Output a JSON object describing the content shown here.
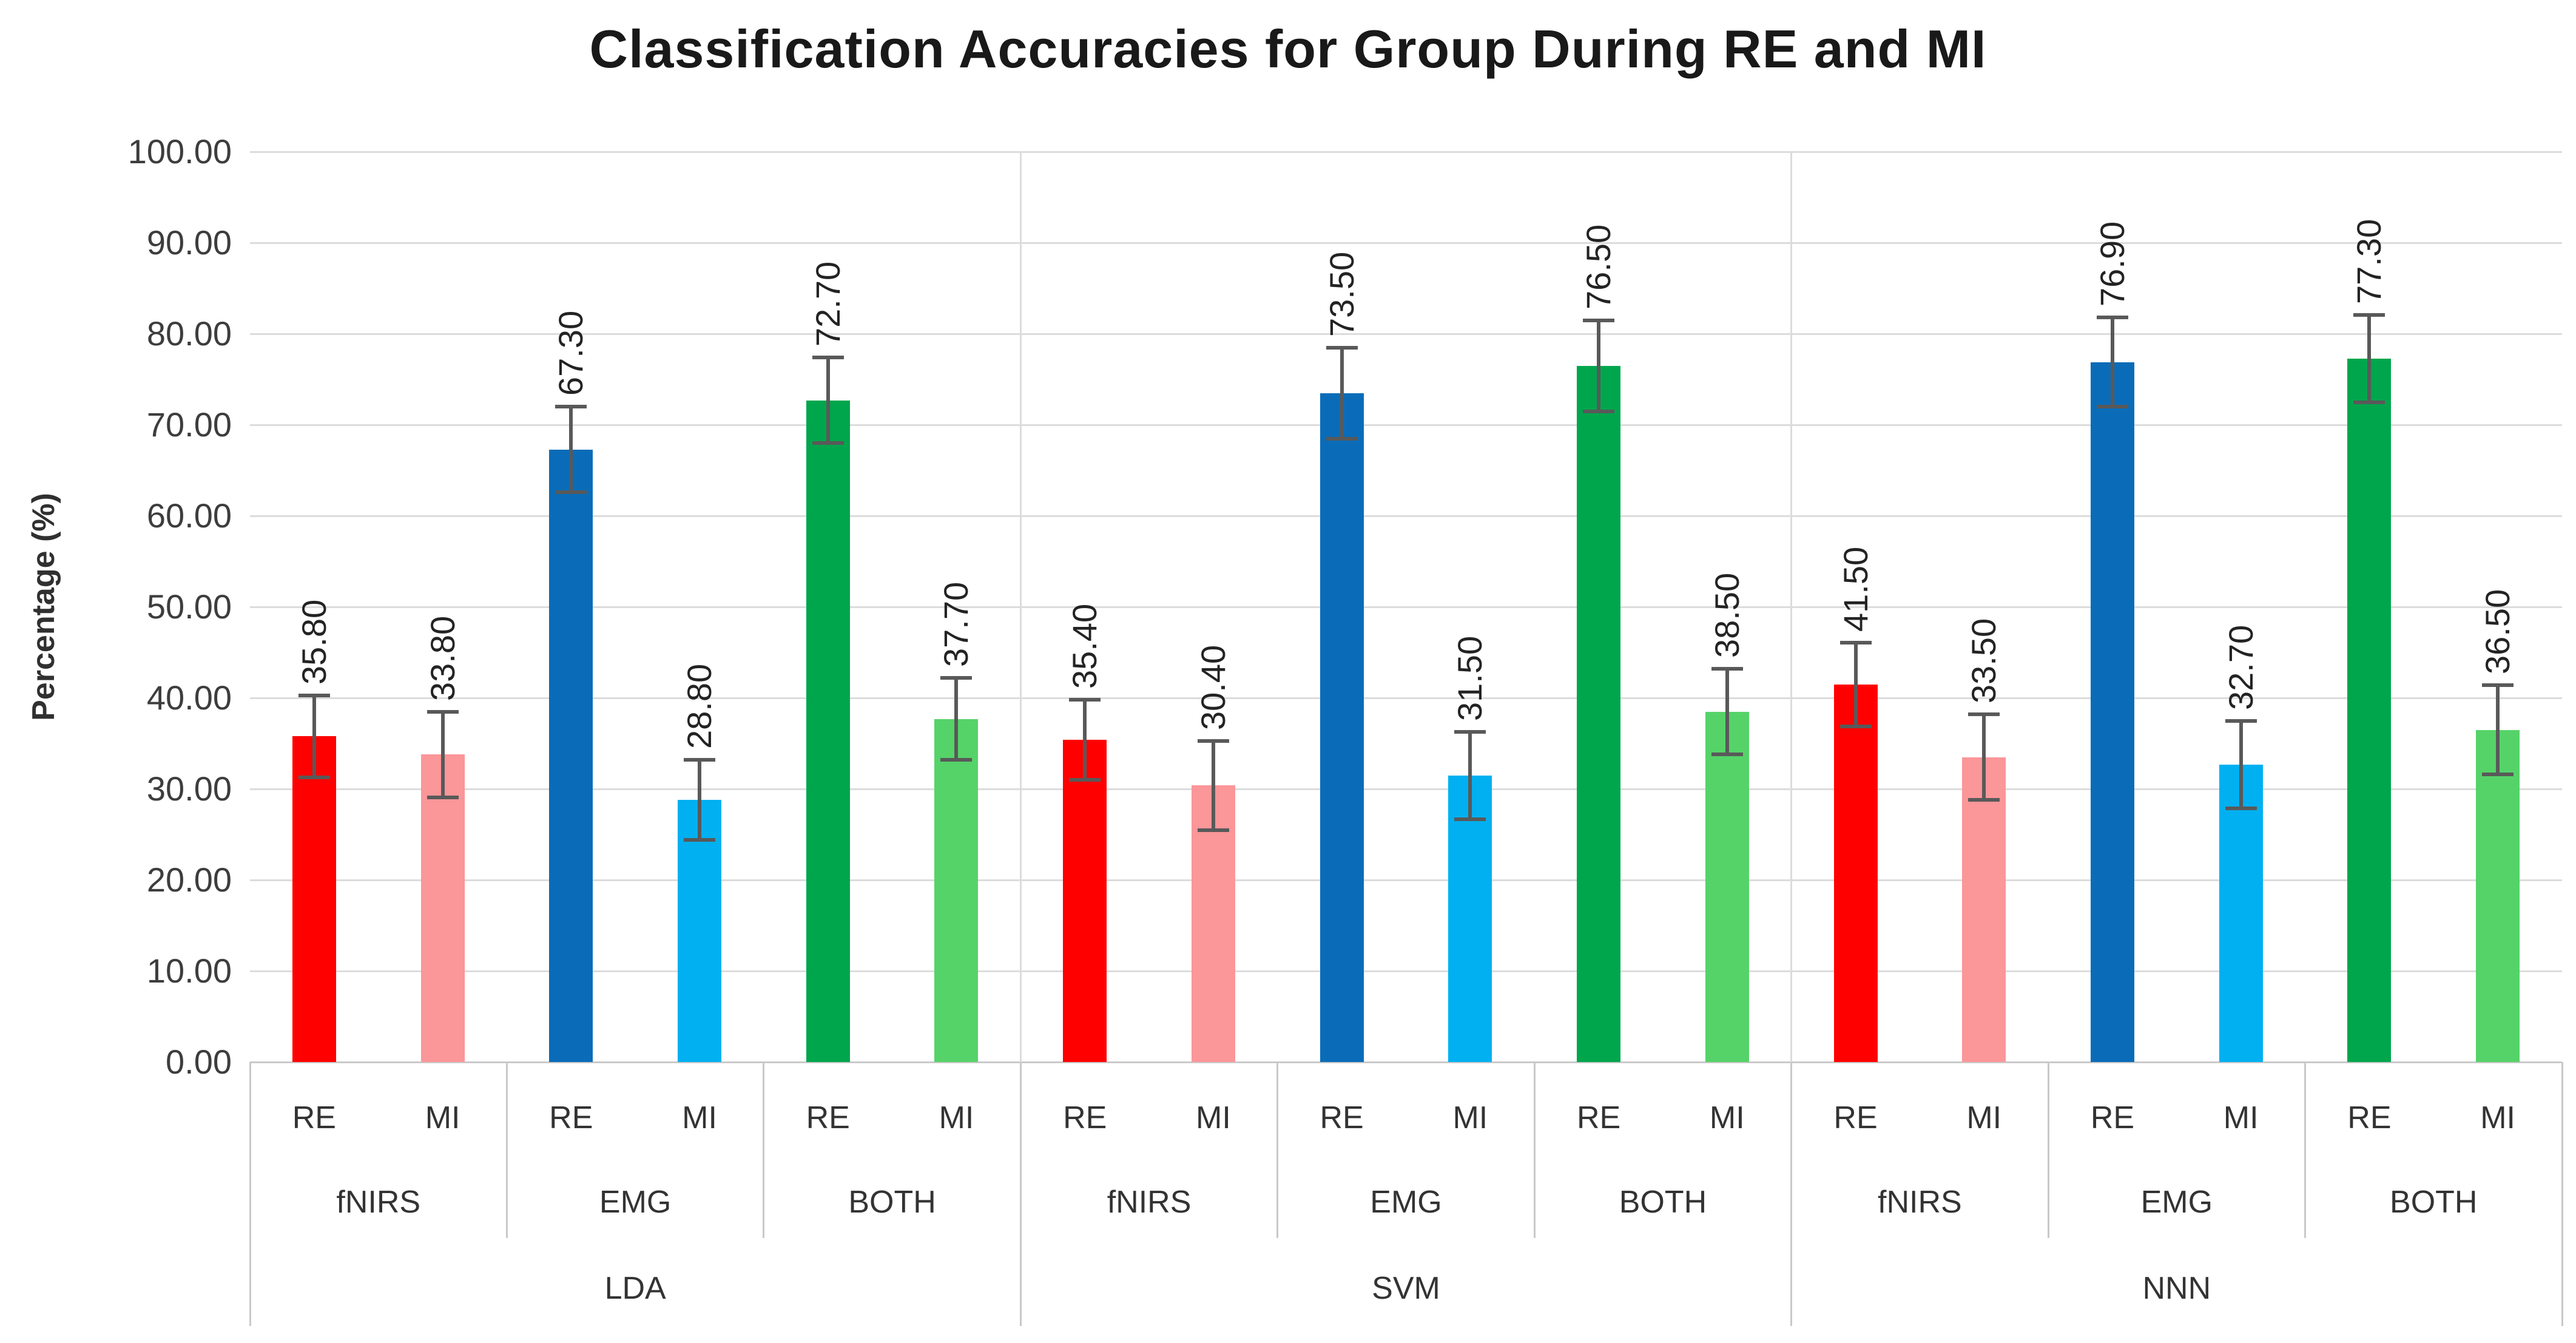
{
  "chart_data": {
    "type": "bar",
    "title": "Classification Accuracies for Group During RE and MI",
    "ylabel": "Percentage (%)",
    "ylim": [
      0,
      100
    ],
    "ytick_step": 10,
    "ytick_labels": [
      "100.00",
      "90.00",
      "80.00",
      "70.00",
      "60.00",
      "50.00",
      "40.00",
      "30.00",
      "20.00",
      "10.00",
      "0.00"
    ],
    "grid": "horizontal",
    "legend": "none",
    "category_levels": [
      "condition",
      "signal",
      "classifier"
    ],
    "groups": [
      {
        "name": "LDA",
        "subgroups": [
          {
            "name": "fNIRS",
            "bars": [
              {
                "condition": "RE",
                "value": 35.8,
                "label": "35.80",
                "error": 4.5
              },
              {
                "condition": "MI",
                "value": 33.8,
                "label": "33.80",
                "error": 4.7
              }
            ]
          },
          {
            "name": "EMG",
            "bars": [
              {
                "condition": "RE",
                "value": 67.3,
                "label": "67.30",
                "error": 4.7
              },
              {
                "condition": "MI",
                "value": 28.8,
                "label": "28.80",
                "error": 4.4
              }
            ]
          },
          {
            "name": "BOTH",
            "bars": [
              {
                "condition": "RE",
                "value": 72.7,
                "label": "72.70",
                "error": 4.7
              },
              {
                "condition": "MI",
                "value": 37.7,
                "label": "37.70",
                "error": 4.5
              }
            ]
          }
        ]
      },
      {
        "name": "SVM",
        "subgroups": [
          {
            "name": "fNIRS",
            "bars": [
              {
                "condition": "RE",
                "value": 35.4,
                "label": "35.40",
                "error": 4.4
              },
              {
                "condition": "MI",
                "value": 30.4,
                "label": "30.40",
                "error": 4.9
              }
            ]
          },
          {
            "name": "EMG",
            "bars": [
              {
                "condition": "RE",
                "value": 73.5,
                "label": "73.50",
                "error": 5.0
              },
              {
                "condition": "MI",
                "value": 31.5,
                "label": "31.50",
                "error": 4.8
              }
            ]
          },
          {
            "name": "BOTH",
            "bars": [
              {
                "condition": "RE",
                "value": 76.5,
                "label": "76.50",
                "error": 5.0
              },
              {
                "condition": "MI",
                "value": 38.5,
                "label": "38.50",
                "error": 4.7
              }
            ]
          }
        ]
      },
      {
        "name": "NNN",
        "subgroups": [
          {
            "name": "fNIRS",
            "bars": [
              {
                "condition": "RE",
                "value": 41.5,
                "label": "41.50",
                "error": 4.6
              },
              {
                "condition": "MI",
                "value": 33.5,
                "label": "33.50",
                "error": 4.7
              }
            ]
          },
          {
            "name": "EMG",
            "bars": [
              {
                "condition": "RE",
                "value": 76.9,
                "label": "76.90",
                "error": 4.9
              },
              {
                "condition": "MI",
                "value": 32.7,
                "label": "32.70",
                "error": 4.8
              }
            ]
          },
          {
            "name": "BOTH",
            "bars": [
              {
                "condition": "RE",
                "value": 77.3,
                "label": "77.30",
                "error": 4.8
              },
              {
                "condition": "MI",
                "value": 36.5,
                "label": "36.50",
                "error": 4.9
              }
            ]
          }
        ]
      }
    ],
    "colors": {
      "fNIRS": {
        "RE": "#FF0000",
        "MI": "#FB9699"
      },
      "EMG": {
        "RE": "#0A6CB8",
        "MI": "#00B0F0"
      },
      "BOTH": {
        "RE": "#00A64C",
        "MI": "#55D369"
      }
    },
    "grid_color": "#DCDCDC",
    "axis_color": "#C9C9C9",
    "error_bar_color": "#595959",
    "text_color": "#262626"
  }
}
